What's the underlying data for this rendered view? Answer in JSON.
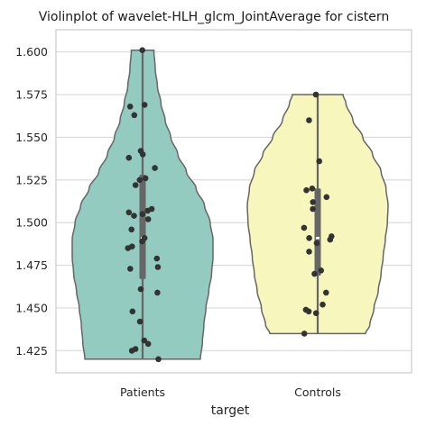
{
  "chart_data": {
    "type": "violin",
    "title": "Violinplot of wavelet-HLH_glcm_JointAverage for cistern",
    "xlabel": "target",
    "ylabel": "",
    "ylim": [
      1.412,
      1.613
    ],
    "yticks": [
      1.425,
      1.45,
      1.475,
      1.5,
      1.525,
      1.55,
      1.575,
      1.6
    ],
    "ytick_labels": [
      "1.425",
      "1.450",
      "1.475",
      "1.500",
      "1.525",
      "1.550",
      "1.575",
      "1.600"
    ],
    "grid": "horizontal",
    "categories": [
      "Patients",
      "Controls"
    ],
    "colors": {
      "Patients": "#93cbc0",
      "Controls": "#f7f7bd",
      "outline": "#666666",
      "point": "#333333",
      "grid": "#d9d9d9",
      "box": "#666666",
      "median": "#ffffff"
    },
    "series": [
      {
        "category": "Patients",
        "min": 1.42,
        "max": 1.601,
        "q1": 1.467,
        "median": 1.491,
        "q3": 1.528,
        "points": [
          1.601,
          1.569,
          1.568,
          1.563,
          1.542,
          1.54,
          1.538,
          1.532,
          1.526,
          1.525,
          1.522,
          1.508,
          1.507,
          1.506,
          1.505,
          1.504,
          1.502,
          1.496,
          1.491,
          1.489,
          1.486,
          1.485,
          1.479,
          1.474,
          1.473,
          1.461,
          1.459,
          1.448,
          1.442,
          1.431,
          1.429,
          1.426,
          1.425,
          1.42
        ],
        "density": [
          [
            1.42,
            0.82
          ],
          [
            1.43,
            0.85
          ],
          [
            1.44,
            0.87
          ],
          [
            1.45,
            0.9
          ],
          [
            1.46,
            0.94
          ],
          [
            1.47,
            0.98
          ],
          [
            1.48,
            1.0
          ],
          [
            1.49,
            1.0
          ],
          [
            1.5,
            0.96
          ],
          [
            1.51,
            0.88
          ],
          [
            1.52,
            0.76
          ],
          [
            1.53,
            0.62
          ],
          [
            1.54,
            0.5
          ],
          [
            1.55,
            0.4
          ],
          [
            1.56,
            0.32
          ],
          [
            1.57,
            0.26
          ],
          [
            1.58,
            0.21
          ],
          [
            1.59,
            0.18
          ],
          [
            1.601,
            0.16
          ]
        ]
      },
      {
        "category": "Controls",
        "min": 1.435,
        "max": 1.575,
        "q1": 1.469,
        "median": 1.491,
        "q3": 1.52,
        "points": [
          1.575,
          1.56,
          1.536,
          1.52,
          1.519,
          1.515,
          1.512,
          1.508,
          1.497,
          1.492,
          1.491,
          1.49,
          1.488,
          1.483,
          1.472,
          1.47,
          1.459,
          1.452,
          1.449,
          1.448,
          1.447,
          1.435
        ],
        "density": [
          [
            1.435,
            0.68
          ],
          [
            1.44,
            0.74
          ],
          [
            1.45,
            0.8
          ],
          [
            1.46,
            0.86
          ],
          [
            1.47,
            0.9
          ],
          [
            1.48,
            0.93
          ],
          [
            1.49,
            0.96
          ],
          [
            1.5,
            0.99
          ],
          [
            1.51,
            1.0
          ],
          [
            1.52,
            0.97
          ],
          [
            1.53,
            0.9
          ],
          [
            1.54,
            0.78
          ],
          [
            1.55,
            0.64
          ],
          [
            1.56,
            0.5
          ],
          [
            1.57,
            0.4
          ],
          [
            1.575,
            0.36
          ]
        ]
      }
    ]
  }
}
